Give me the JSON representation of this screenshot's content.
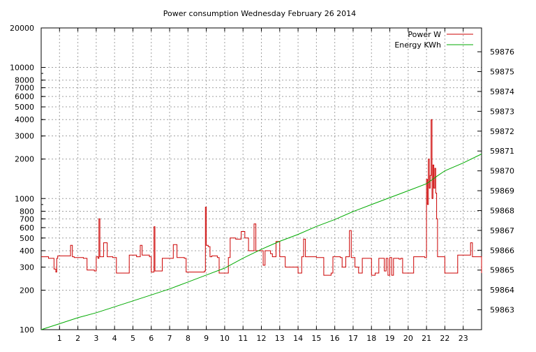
{
  "chart_data": {
    "type": "line",
    "title": "Power consumption Wednesday February 26 2014",
    "x": {
      "range": [
        0,
        24
      ],
      "ticks": [
        1,
        2,
        3,
        4,
        5,
        6,
        7,
        8,
        9,
        10,
        11,
        12,
        13,
        14,
        15,
        16,
        17,
        18,
        19,
        20,
        21,
        22,
        23
      ]
    },
    "y_left": {
      "scale": "log",
      "range": [
        100,
        20000
      ],
      "ticks": [
        100,
        200,
        300,
        400,
        500,
        600,
        700,
        800,
        1000,
        2000,
        3000,
        4000,
        5000,
        6000,
        7000,
        8000,
        10000,
        20000
      ],
      "tick_labels": [
        "100",
        "200",
        "300",
        "400",
        "500",
        "600",
        "700",
        "800",
        "1000",
        "2000",
        "3000",
        "4000",
        "5000",
        "6000",
        "7000",
        "8000",
        "10000",
        "20000"
      ]
    },
    "y_right": {
      "scale": "linear",
      "range": [
        59862.0,
        59877.2
      ],
      "ticks": [
        59863,
        59864,
        59865,
        59866,
        59867,
        59868,
        59869,
        59870,
        59871,
        59872,
        59873,
        59874,
        59875,
        59876
      ],
      "tick_labels": [
        "59863",
        "59864",
        "59865",
        "59866",
        "59867",
        "59868",
        "59869",
        "59870",
        "59871",
        "59872",
        "59873",
        "59874",
        "59875",
        "59876"
      ]
    },
    "grid": true,
    "legend_position": "top-right",
    "series": [
      {
        "name": "Power W",
        "color": "#cc0000",
        "axis": "left",
        "step": true,
        "points": [
          [
            0.0,
            360
          ],
          [
            0.4,
            350
          ],
          [
            0.7,
            290
          ],
          [
            0.8,
            275
          ],
          [
            0.85,
            350
          ],
          [
            0.9,
            365
          ],
          [
            1.5,
            365
          ],
          [
            1.6,
            440
          ],
          [
            1.7,
            360
          ],
          [
            1.8,
            355
          ],
          [
            2.3,
            350
          ],
          [
            2.5,
            285
          ],
          [
            2.9,
            280
          ],
          [
            3.0,
            360
          ],
          [
            3.1,
            350
          ],
          [
            3.15,
            700
          ],
          [
            3.2,
            360
          ],
          [
            3.3,
            360
          ],
          [
            3.4,
            460
          ],
          [
            3.6,
            360
          ],
          [
            3.9,
            355
          ],
          [
            4.1,
            270
          ],
          [
            4.7,
            270
          ],
          [
            4.8,
            370
          ],
          [
            5.2,
            360
          ],
          [
            5.4,
            440
          ],
          [
            5.5,
            370
          ],
          [
            5.9,
            360
          ],
          [
            6.0,
            275
          ],
          [
            6.15,
            610
          ],
          [
            6.2,
            280
          ],
          [
            6.5,
            280
          ],
          [
            6.6,
            350
          ],
          [
            7.1,
            350
          ],
          [
            7.2,
            445
          ],
          [
            7.4,
            355
          ],
          [
            7.8,
            350
          ],
          [
            7.9,
            275
          ],
          [
            8.9,
            280
          ],
          [
            8.95,
            860
          ],
          [
            9.0,
            440
          ],
          [
            9.1,
            430
          ],
          [
            9.2,
            360
          ],
          [
            9.3,
            365
          ],
          [
            9.6,
            355
          ],
          [
            9.7,
            270
          ],
          [
            10.0,
            270
          ],
          [
            10.2,
            355
          ],
          [
            10.3,
            500
          ],
          [
            10.6,
            490
          ],
          [
            10.9,
            560
          ],
          [
            11.1,
            500
          ],
          [
            11.3,
            400
          ],
          [
            11.6,
            640
          ],
          [
            11.7,
            400
          ],
          [
            12.0,
            400
          ],
          [
            12.1,
            310
          ],
          [
            12.2,
            400
          ],
          [
            12.5,
            380
          ],
          [
            12.6,
            360
          ],
          [
            12.7,
            360
          ],
          [
            12.8,
            470
          ],
          [
            13.0,
            360
          ],
          [
            13.3,
            300
          ],
          [
            13.9,
            300
          ],
          [
            14.0,
            270
          ],
          [
            14.2,
            360
          ],
          [
            14.3,
            490
          ],
          [
            14.4,
            360
          ],
          [
            15.0,
            355
          ],
          [
            15.4,
            260
          ],
          [
            15.8,
            270
          ],
          [
            15.9,
            360
          ],
          [
            16.3,
            355
          ],
          [
            16.4,
            300
          ],
          [
            16.6,
            360
          ],
          [
            16.7,
            360
          ],
          [
            16.8,
            570
          ],
          [
            16.9,
            355
          ],
          [
            17.1,
            300
          ],
          [
            17.3,
            270
          ],
          [
            17.5,
            350
          ],
          [
            17.9,
            350
          ],
          [
            18.0,
            260
          ],
          [
            18.2,
            270
          ],
          [
            18.4,
            350
          ],
          [
            18.7,
            280
          ],
          [
            18.8,
            350
          ],
          [
            18.9,
            260
          ],
          [
            19.0,
            355
          ],
          [
            19.1,
            260
          ],
          [
            19.2,
            350
          ],
          [
            19.5,
            345
          ],
          [
            19.6,
            350
          ],
          [
            19.7,
            270
          ],
          [
            20.2,
            270
          ],
          [
            20.3,
            360
          ],
          [
            20.9,
            355
          ],
          [
            21.0,
            1400
          ],
          [
            21.05,
            900
          ],
          [
            21.1,
            2000
          ],
          [
            21.15,
            1200
          ],
          [
            21.2,
            1500
          ],
          [
            21.25,
            4000
          ],
          [
            21.3,
            1000
          ],
          [
            21.35,
            1800
          ],
          [
            21.4,
            1200
          ],
          [
            21.45,
            1700
          ],
          [
            21.5,
            1100
          ],
          [
            21.55,
            700
          ],
          [
            21.6,
            360
          ],
          [
            21.9,
            360
          ],
          [
            22.0,
            270
          ],
          [
            22.6,
            270
          ],
          [
            22.7,
            370
          ],
          [
            23.3,
            370
          ],
          [
            23.4,
            460
          ],
          [
            23.5,
            360
          ],
          [
            24.0,
            270
          ]
        ]
      },
      {
        "name": "Energy KWh",
        "color": "#00aa00",
        "axis": "right",
        "step": false,
        "points": [
          [
            0.0,
            59862.0
          ],
          [
            1.0,
            59862.3
          ],
          [
            2.0,
            59862.6
          ],
          [
            3.0,
            59862.85
          ],
          [
            4.0,
            59863.15
          ],
          [
            5.0,
            59863.45
          ],
          [
            6.0,
            59863.75
          ],
          [
            7.0,
            59864.05
          ],
          [
            8.0,
            59864.4
          ],
          [
            9.0,
            59864.75
          ],
          [
            10.0,
            59865.1
          ],
          [
            11.0,
            59865.6
          ],
          [
            12.0,
            59866.05
          ],
          [
            13.0,
            59866.45
          ],
          [
            14.0,
            59866.8
          ],
          [
            15.0,
            59867.2
          ],
          [
            16.0,
            59867.55
          ],
          [
            17.0,
            59867.95
          ],
          [
            18.0,
            59868.3
          ],
          [
            19.0,
            59868.65
          ],
          [
            20.0,
            59869.0
          ],
          [
            21.0,
            59869.35
          ],
          [
            21.3,
            59869.55
          ],
          [
            21.6,
            59869.75
          ],
          [
            22.0,
            59870.0
          ],
          [
            23.0,
            59870.4
          ],
          [
            24.0,
            59870.85
          ]
        ]
      }
    ]
  }
}
